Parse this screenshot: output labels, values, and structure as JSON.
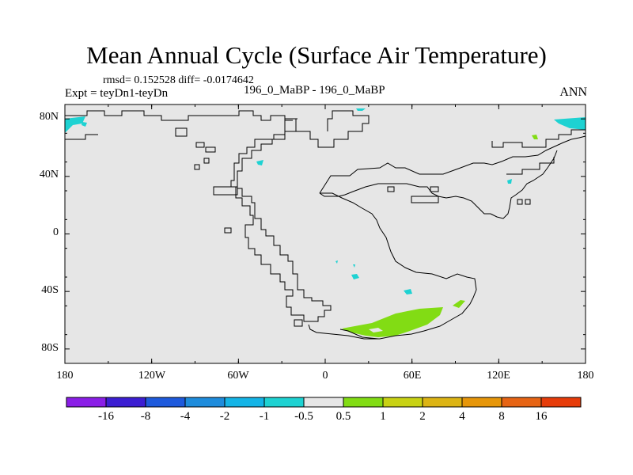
{
  "title": "Mean Annual Cycle (Surface Air Temperature)",
  "stats": "rmsd= 0.152528 diff= -0.0174642",
  "experiment": "Expt = teyDn1-teyDn",
  "center_label": "196_0_MaBP - 196_0_MaBP",
  "season": "ANN",
  "map": {
    "background_color": "#e6e6e6",
    "lat_labels": [
      "80N",
      "40N",
      "0",
      "40S",
      "80S"
    ],
    "lat_values": [
      80,
      40,
      0,
      -40,
      -80
    ],
    "lon_labels": [
      "180",
      "120W",
      "60W",
      "0",
      "60E",
      "120E",
      "180"
    ],
    "lon_values": [
      -180,
      -120,
      -60,
      0,
      60,
      120,
      180
    ]
  },
  "colorbar": {
    "colors": [
      "#8a1ee6",
      "#3c1ed2",
      "#1e5adc",
      "#1e8cdc",
      "#14b4e6",
      "#1ed2d2",
      "#e6e6e6",
      "#82dc14",
      "#c8d214",
      "#dcb414",
      "#e6960a",
      "#e66414",
      "#e63c0a"
    ],
    "labels": [
      "-16",
      "-8",
      "-4",
      "-2",
      "-1",
      "-0.5",
      "0.5",
      "1",
      "2",
      "4",
      "8",
      "16"
    ]
  }
}
